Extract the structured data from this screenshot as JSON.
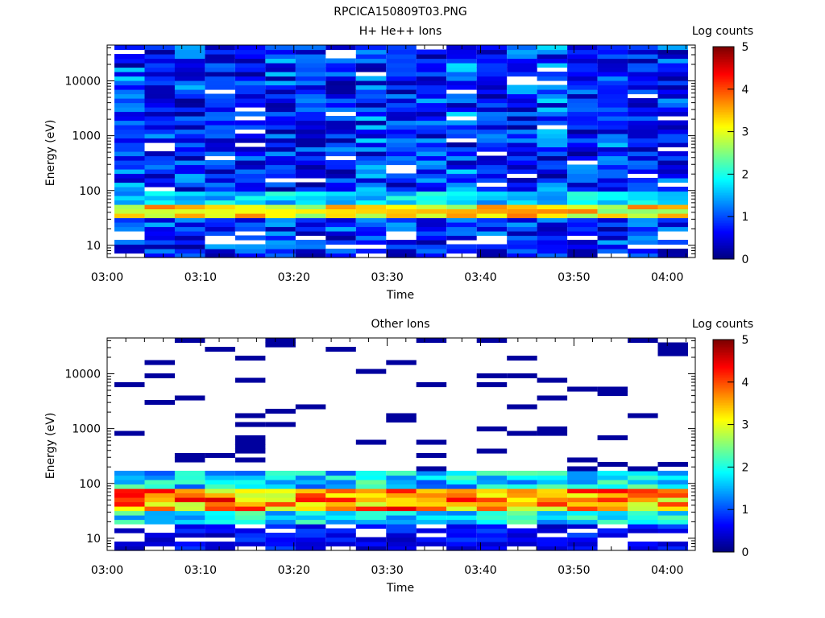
{
  "figure_title": "RPCICA150809T03.PNG",
  "chart_data": [
    {
      "type": "heatmap",
      "title": "H+ He++ Ions",
      "xlabel": "Time",
      "ylabel": "Energy (eV)",
      "x_ticks": [
        "03:00",
        "03:10",
        "03:20",
        "03:30",
        "03:40",
        "03:50",
        "04:00"
      ],
      "x_range": [
        "03:00",
        "04:03"
      ],
      "y_scale": "log",
      "y_ticks": [
        10,
        100,
        1000,
        10000
      ],
      "y_range": [
        6,
        45000
      ],
      "colorbar": {
        "label": "Log counts",
        "ticks": [
          0,
          1,
          2,
          3,
          4,
          5
        ],
        "range": [
          0,
          5
        ],
        "colormap": "rainbow"
      },
      "n_time_columns": 19,
      "low_energy_peak_eV": [
        33,
        60
      ],
      "peak_log_counts_range": [
        2.5,
        3.8
      ],
      "background_log_counts_range": [
        0.1,
        1.5
      ]
    },
    {
      "type": "heatmap",
      "title": "Other Ions",
      "xlabel": "Time",
      "ylabel": "Energy (eV)",
      "x_ticks": [
        "03:00",
        "03:10",
        "03:20",
        "03:30",
        "03:40",
        "03:50",
        "04:00"
      ],
      "x_range": [
        "03:00",
        "04:03"
      ],
      "y_scale": "log",
      "y_ticks": [
        10,
        100,
        1000,
        10000
      ],
      "y_range": [
        6,
        45000
      ],
      "colorbar": {
        "label": "Log counts",
        "ticks": [
          0,
          1,
          2,
          3,
          4,
          5
        ],
        "range": [
          0,
          5
        ],
        "colormap": "rainbow"
      },
      "n_time_columns": 19,
      "low_energy_peak_eV": [
        35,
        75
      ],
      "peak_log_counts_range": [
        2.8,
        4.6
      ],
      "background_log_counts_range": [
        0,
        1
      ]
    }
  ]
}
